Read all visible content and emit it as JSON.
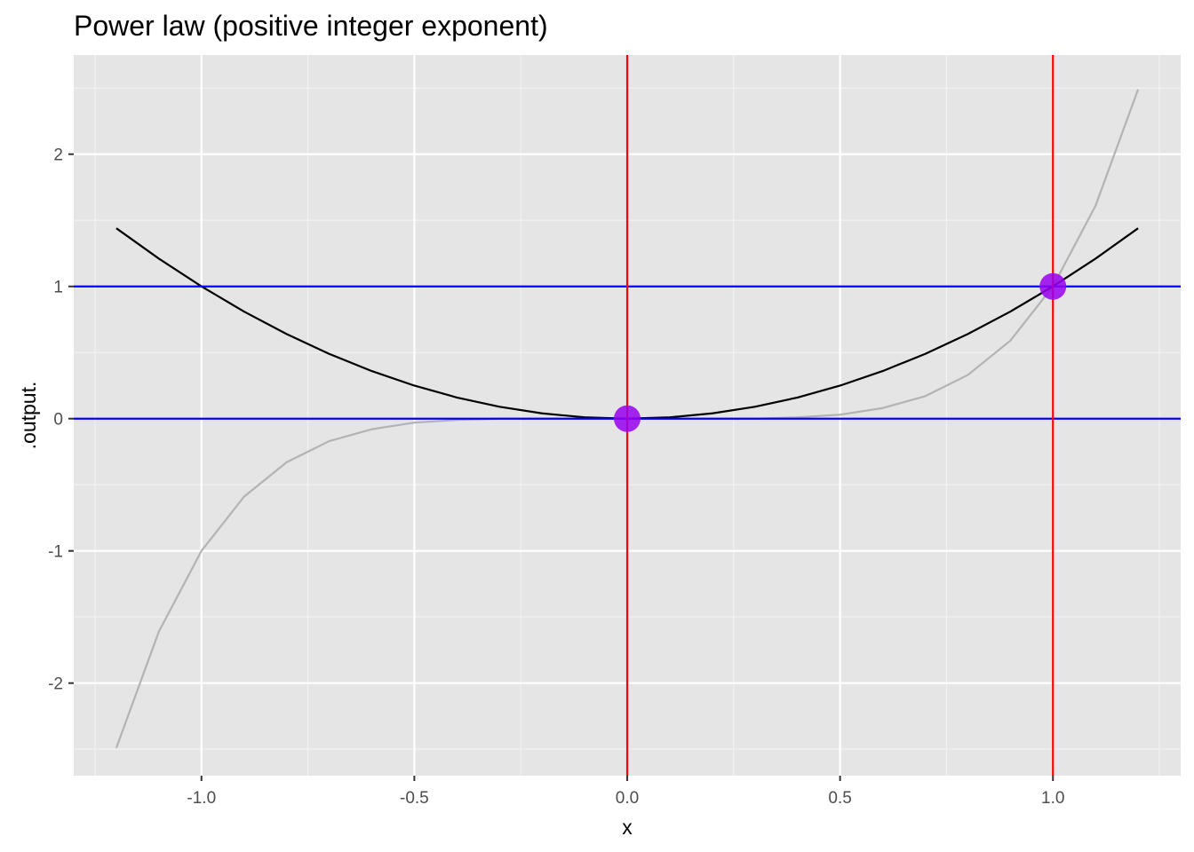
{
  "chart_data": {
    "type": "line",
    "title": "Power law (positive integer exponent)",
    "xlabel": "x",
    "ylabel": ".output.",
    "xlim": [
      -1.3,
      1.3
    ],
    "ylim": [
      -2.7,
      2.75
    ],
    "x_ticks": [
      {
        "value": -1.0,
        "label": "-1.0"
      },
      {
        "value": -0.5,
        "label": "-0.5"
      },
      {
        "value": 0.0,
        "label": "0.0"
      },
      {
        "value": 0.5,
        "label": "0.5"
      },
      {
        "value": 1.0,
        "label": "1.0"
      }
    ],
    "y_ticks": [
      {
        "value": -2,
        "label": "-2"
      },
      {
        "value": -1,
        "label": "-1"
      },
      {
        "value": 0,
        "label": "0"
      },
      {
        "value": 1,
        "label": "1"
      },
      {
        "value": 2,
        "label": "2"
      }
    ],
    "x_minor": [
      -1.25,
      -0.75,
      -0.25,
      0.25,
      0.75,
      1.25
    ],
    "y_minor": [
      -2.5,
      -1.5,
      -0.5,
      0.5,
      1.5,
      2.5
    ],
    "grid": true,
    "series": [
      {
        "color": "#b3b3b3",
        "x": [
          -1.2,
          -1.1,
          -1.0,
          -0.9,
          -0.8,
          -0.7,
          -0.6,
          -0.5,
          -0.4,
          -0.3,
          -0.2,
          -0.1,
          0.0,
          0.1,
          0.2,
          0.3,
          0.4,
          0.5,
          0.6,
          0.7,
          0.8,
          0.9,
          1.0,
          1.1,
          1.2
        ],
        "y": [
          -2.49,
          -1.61,
          -1.0,
          -0.59,
          -0.33,
          -0.17,
          -0.08,
          -0.03,
          -0.01,
          0.0,
          0.0,
          0.0,
          0.0,
          0.0,
          0.0,
          0.0,
          0.01,
          0.03,
          0.08,
          0.17,
          0.33,
          0.59,
          1.0,
          1.61,
          2.49
        ]
      },
      {
        "color": "#000000",
        "x": [
          -1.2,
          -1.1,
          -1.0,
          -0.9,
          -0.8,
          -0.7,
          -0.6,
          -0.5,
          -0.4,
          -0.3,
          -0.2,
          -0.1,
          0.0,
          0.1,
          0.2,
          0.3,
          0.4,
          0.5,
          0.6,
          0.7,
          0.8,
          0.9,
          1.0,
          1.1,
          1.2
        ],
        "y": [
          1.44,
          1.21,
          1.0,
          0.81,
          0.64,
          0.49,
          0.36,
          0.25,
          0.16,
          0.09,
          0.04,
          0.01,
          0.0,
          0.01,
          0.04,
          0.09,
          0.16,
          0.25,
          0.36,
          0.49,
          0.64,
          0.81,
          1.0,
          1.21,
          1.44
        ]
      }
    ],
    "vlines": {
      "values": [
        0,
        1
      ],
      "color": "#ff0000"
    },
    "hlines": {
      "values": [
        0,
        1
      ],
      "color": "#0000ff"
    },
    "points": {
      "color": "#9900ee",
      "data": [
        {
          "x": 0,
          "y": 0
        },
        {
          "x": 1,
          "y": 1
        }
      ]
    }
  }
}
